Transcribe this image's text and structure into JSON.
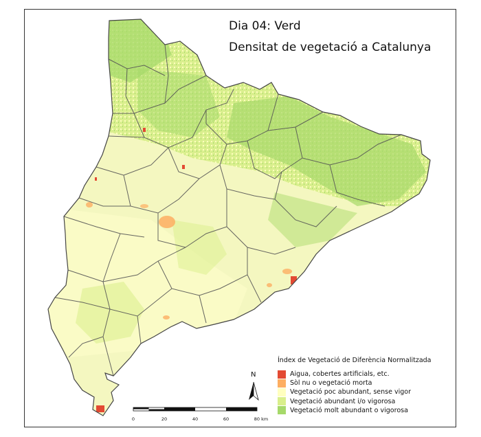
{
  "title_line1": "Dia 04: Verd",
  "title_line2": "Densitat de vegetació a Catalunya",
  "legend": {
    "title": "Índex de Vegetació de Diferència Normalitzada",
    "items": [
      {
        "label": "Aigua, cobertes artificials, etc.",
        "color": "#e34a33"
      },
      {
        "label": "Sòl nu o vegetació morta",
        "color": "#fdae61"
      },
      {
        "label": "Vegetació poc abundant, sense vigor",
        "color": "#ffffbf"
      },
      {
        "label": "Vegetació abundant i/o vigorosa",
        "color": "#d9ef8b"
      },
      {
        "label": "Vegetació molt abundant o vigorosa",
        "color": "#a6d96a"
      }
    ]
  },
  "north_label": "N",
  "scale": {
    "ticks": [
      "0",
      "20",
      "40",
      "60",
      "80 km"
    ]
  }
}
